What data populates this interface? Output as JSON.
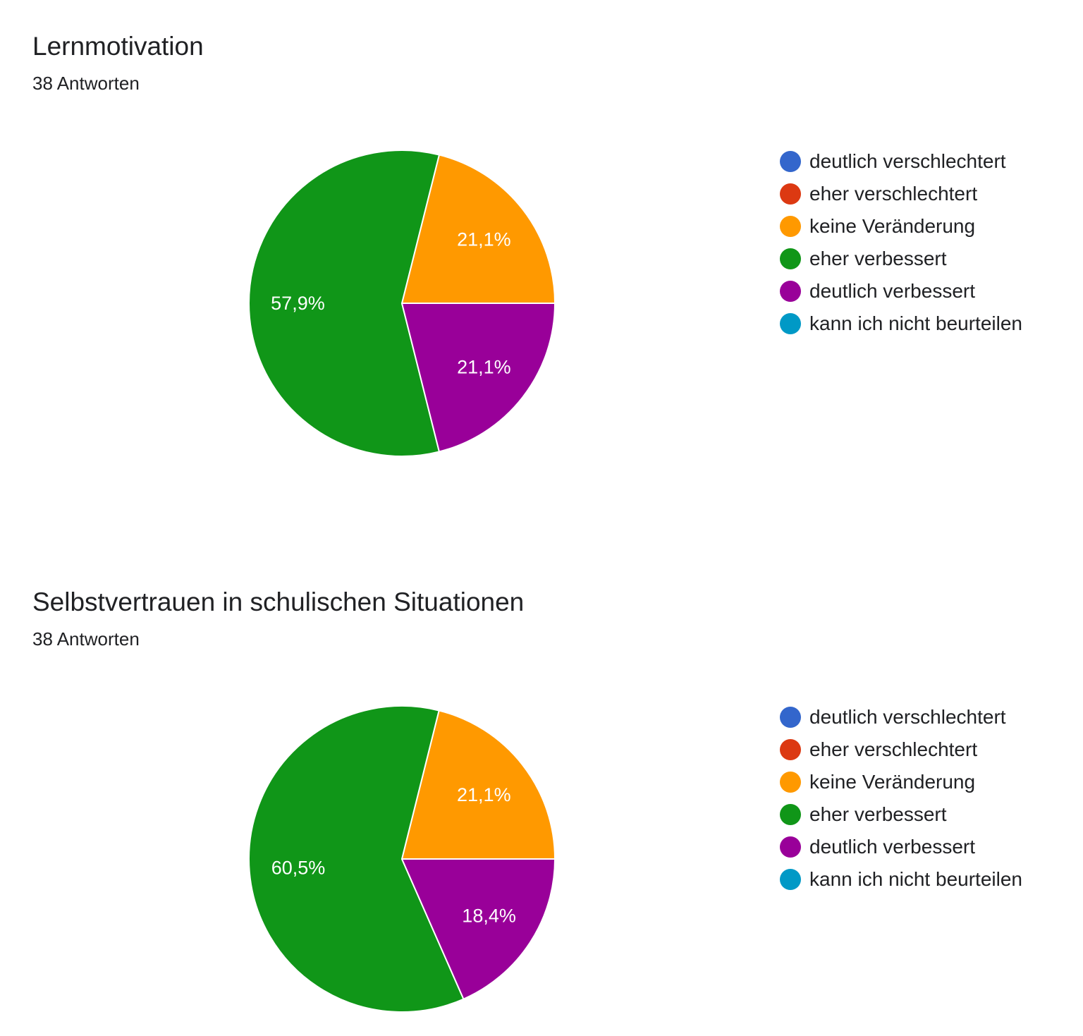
{
  "chart_data": [
    {
      "type": "pie",
      "title": "Lernmotivation",
      "subtitle": "38 Antworten",
      "legend_position": "right",
      "categories": [
        "deutlich verschlechtert",
        "eher verschlechtert",
        "keine Veränderung",
        "eher verbessert",
        "deutlich verbessert",
        "kann ich nicht beurteilen"
      ],
      "values": [
        0,
        0,
        21.1,
        57.9,
        21.1,
        0
      ],
      "labels": [
        "",
        "",
        "21,1%",
        "57,9%",
        "21,1%",
        ""
      ],
      "colors": [
        "#3366cc",
        "#dc3912",
        "#ff9900",
        "#109618",
        "#990099",
        "#0099c6"
      ]
    },
    {
      "type": "pie",
      "title": "Selbstvertrauen in schulischen Situationen",
      "subtitle": "38 Antworten",
      "legend_position": "right",
      "categories": [
        "deutlich verschlechtert",
        "eher verschlechtert",
        "keine Veränderung",
        "eher verbessert",
        "deutlich verbessert",
        "kann ich nicht beurteilen"
      ],
      "values": [
        0,
        0,
        21.1,
        60.5,
        18.4,
        0
      ],
      "labels": [
        "",
        "",
        "21,1%",
        "60,5%",
        "18,4%",
        ""
      ],
      "colors": [
        "#3366cc",
        "#dc3912",
        "#ff9900",
        "#109618",
        "#990099",
        "#0099c6"
      ]
    }
  ]
}
